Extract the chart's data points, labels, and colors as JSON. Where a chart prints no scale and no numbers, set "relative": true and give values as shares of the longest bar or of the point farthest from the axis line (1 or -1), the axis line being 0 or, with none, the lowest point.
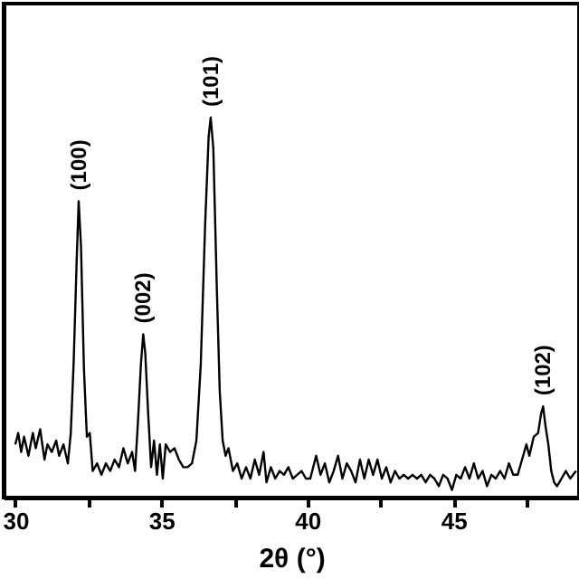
{
  "chart_data": {
    "type": "line",
    "relative": true,
    "xlabel": "2θ (°)",
    "xlim": [
      29.6,
      49.3
    ],
    "xticks": [
      30,
      {
        "value": 32.5,
        "label": null
      },
      35,
      {
        "value": 37.5,
        "label": null
      },
      40,
      {
        "value": 42.5,
        "label": null
      },
      45,
      {
        "value": 47.5,
        "label": null
      }
    ],
    "series": [
      {
        "color": "#000000",
        "x": [
          30.0,
          30.1,
          30.2,
          30.3,
          30.45,
          30.6,
          30.7,
          30.85,
          31.0,
          31.1,
          31.25,
          31.4,
          31.5,
          31.65,
          31.8,
          31.9,
          32.0,
          32.1,
          32.17,
          32.25,
          32.35,
          32.45,
          32.55,
          32.65,
          32.8,
          32.95,
          33.1,
          33.25,
          33.4,
          33.55,
          33.7,
          33.85,
          34.0,
          34.1,
          34.2,
          34.3,
          34.38,
          34.45,
          34.55,
          34.65,
          34.75,
          34.85,
          34.95,
          35.05,
          35.15,
          35.3,
          35.45,
          35.6,
          35.75,
          35.9,
          36.05,
          36.2,
          36.35,
          36.5,
          36.62,
          36.69,
          36.78,
          36.9,
          37.0,
          37.1,
          37.2,
          37.3,
          37.45,
          37.6,
          37.75,
          37.9,
          38.05,
          38.2,
          38.35,
          38.5,
          38.6,
          38.75,
          38.9,
          39.05,
          39.2,
          39.35,
          39.5,
          39.65,
          39.8,
          39.95,
          40.1,
          40.3,
          40.45,
          40.6,
          40.75,
          40.9,
          41.05,
          41.2,
          41.35,
          41.5,
          41.65,
          41.8,
          41.95,
          42.1,
          42.25,
          42.4,
          42.55,
          42.7,
          42.85,
          43.0,
          43.15,
          43.3,
          43.45,
          43.6,
          43.75,
          43.9,
          44.05,
          44.2,
          44.35,
          44.5,
          44.65,
          44.8,
          44.95,
          45.1,
          45.25,
          45.4,
          45.55,
          45.7,
          45.85,
          46.0,
          46.15,
          46.3,
          46.45,
          46.6,
          46.75,
          46.9,
          47.05,
          47.2,
          47.35,
          47.5,
          47.6,
          47.75,
          47.9,
          48.0,
          48.07,
          48.15,
          48.25,
          48.35,
          48.45,
          48.55,
          48.7,
          48.85,
          49.0,
          49.2
        ],
        "values": [
          0.14,
          0.17,
          0.12,
          0.16,
          0.11,
          0.17,
          0.13,
          0.18,
          0.1,
          0.14,
          0.12,
          0.15,
          0.11,
          0.14,
          0.09,
          0.17,
          0.36,
          0.62,
          0.78,
          0.66,
          0.34,
          0.16,
          0.17,
          0.07,
          0.09,
          0.06,
          0.09,
          0.07,
          0.1,
          0.08,
          0.13,
          0.09,
          0.12,
          0.07,
          0.2,
          0.35,
          0.43,
          0.38,
          0.22,
          0.08,
          0.15,
          0.06,
          0.14,
          0.05,
          0.14,
          0.12,
          0.13,
          0.1,
          0.08,
          0.08,
          0.09,
          0.15,
          0.35,
          0.72,
          0.95,
          1,
          0.92,
          0.55,
          0.28,
          0.15,
          0.11,
          0.13,
          0.07,
          0.09,
          0.05,
          0.08,
          0.05,
          0.1,
          0.06,
          0.12,
          0.04,
          0.08,
          0.05,
          0.07,
          0.06,
          0.08,
          0.05,
          0.06,
          0.07,
          0.05,
          0.05,
          0.11,
          0.06,
          0.09,
          0.04,
          0.07,
          0.11,
          0.05,
          0.09,
          0.07,
          0.04,
          0.1,
          0.05,
          0.1,
          0.06,
          0.1,
          0.05,
          0.08,
          0.04,
          0.07,
          0.05,
          0.06,
          0.05,
          0.06,
          0.05,
          0.06,
          0.04,
          0.06,
          0.05,
          0.03,
          0.06,
          0.05,
          0.02,
          0.06,
          0.05,
          0.08,
          0.05,
          0.09,
          0.05,
          0.07,
          0.03,
          0.06,
          0.05,
          0.07,
          0.05,
          0.09,
          0.06,
          0.06,
          0.1,
          0.14,
          0.11,
          0.16,
          0.17,
          0.22,
          0.24,
          0.19,
          0.14,
          0.07,
          0.04,
          0.03,
          0.05,
          0.07,
          0.05,
          0.07
        ]
      }
    ],
    "annotations": [
      {
        "text": "(100)",
        "x": 32.17,
        "y": 0.78
      },
      {
        "text": "(002)",
        "x": 34.38,
        "y": 0.43
      },
      {
        "text": "(101)",
        "x": 36.69,
        "y": 1
      },
      {
        "text": "(102)",
        "x": 48.07,
        "y": 0.24
      }
    ]
  }
}
